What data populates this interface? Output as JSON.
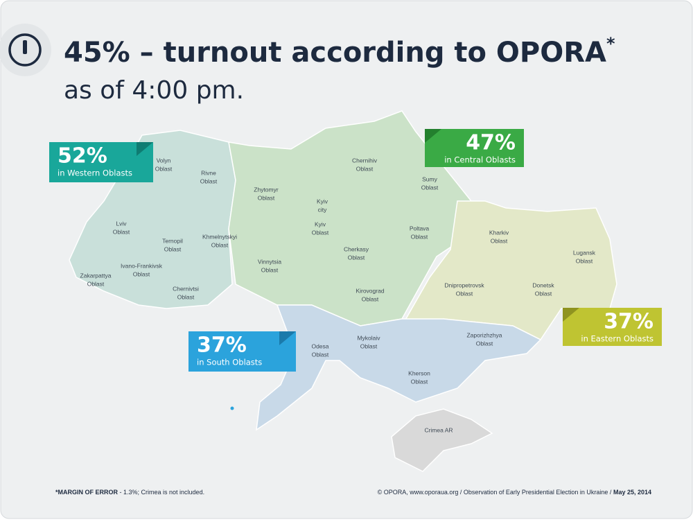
{
  "header": {
    "title": "45% – turnout according to OPORA",
    "title_mark": "*",
    "subtitle": "as of 4:00 pm."
  },
  "callouts": [
    {
      "value": "52%",
      "label": "in Western Oblasts"
    },
    {
      "value": "47%",
      "label": "in Central Oblasts"
    },
    {
      "value": "37%",
      "label": "in South Oblasts"
    },
    {
      "value": "37%",
      "label": "in Eastern Oblasts"
    }
  ],
  "oblasts": [
    {
      "lines": [
        "Volyn",
        "Oblast"
      ]
    },
    {
      "lines": [
        "Rivne",
        "Oblast"
      ]
    },
    {
      "lines": [
        "Lviv",
        "Oblast"
      ]
    },
    {
      "lines": [
        "Ternopil",
        "Oblast"
      ]
    },
    {
      "lines": [
        "Khmelnytskyi",
        "Oblast"
      ]
    },
    {
      "lines": [
        "Zakarpattya",
        "Oblast"
      ]
    },
    {
      "lines": [
        "Ivano-Frankivsk",
        "Oblast"
      ]
    },
    {
      "lines": [
        "Chernivtsi",
        "Oblast"
      ]
    },
    {
      "lines": [
        "Zhytomyr",
        "Oblast"
      ]
    },
    {
      "lines": [
        "Kyiv",
        "city"
      ]
    },
    {
      "lines": [
        "Kyiv",
        "Oblast"
      ]
    },
    {
      "lines": [
        "Chernihiv",
        "Oblast"
      ]
    },
    {
      "lines": [
        "Sumy",
        "Oblast"
      ]
    },
    {
      "lines": [
        "Poltava",
        "Oblast"
      ]
    },
    {
      "lines": [
        "Cherkasy",
        "Oblast"
      ]
    },
    {
      "lines": [
        "Vinnytsia",
        "Oblast"
      ]
    },
    {
      "lines": [
        "Kirovograd",
        "Oblast"
      ]
    },
    {
      "lines": [
        "Kharkiv",
        "Oblast"
      ]
    },
    {
      "lines": [
        "Lugansk",
        "Oblast"
      ]
    },
    {
      "lines": [
        "Dnipropetrovsk",
        "Oblast"
      ]
    },
    {
      "lines": [
        "Donetsk",
        "Oblast"
      ]
    },
    {
      "lines": [
        "Odesa",
        "Oblast"
      ]
    },
    {
      "lines": [
        "Mykolaiv",
        "Oblast"
      ]
    },
    {
      "lines": [
        "Zaporizhzhya",
        "Oblast"
      ]
    },
    {
      "lines": [
        "Kherson",
        "Oblast"
      ]
    },
    {
      "lines": [
        "Crimea AR"
      ]
    }
  ],
  "footer": {
    "note_label": "*MARGIN OF ERROR",
    "note_text": "- 1.3%; Crimea is not included.",
    "source": "© OPORA, www.oporaua.org / Observation of Early Presidential Election in Ukraine /",
    "date": "May 25, 2014"
  }
}
